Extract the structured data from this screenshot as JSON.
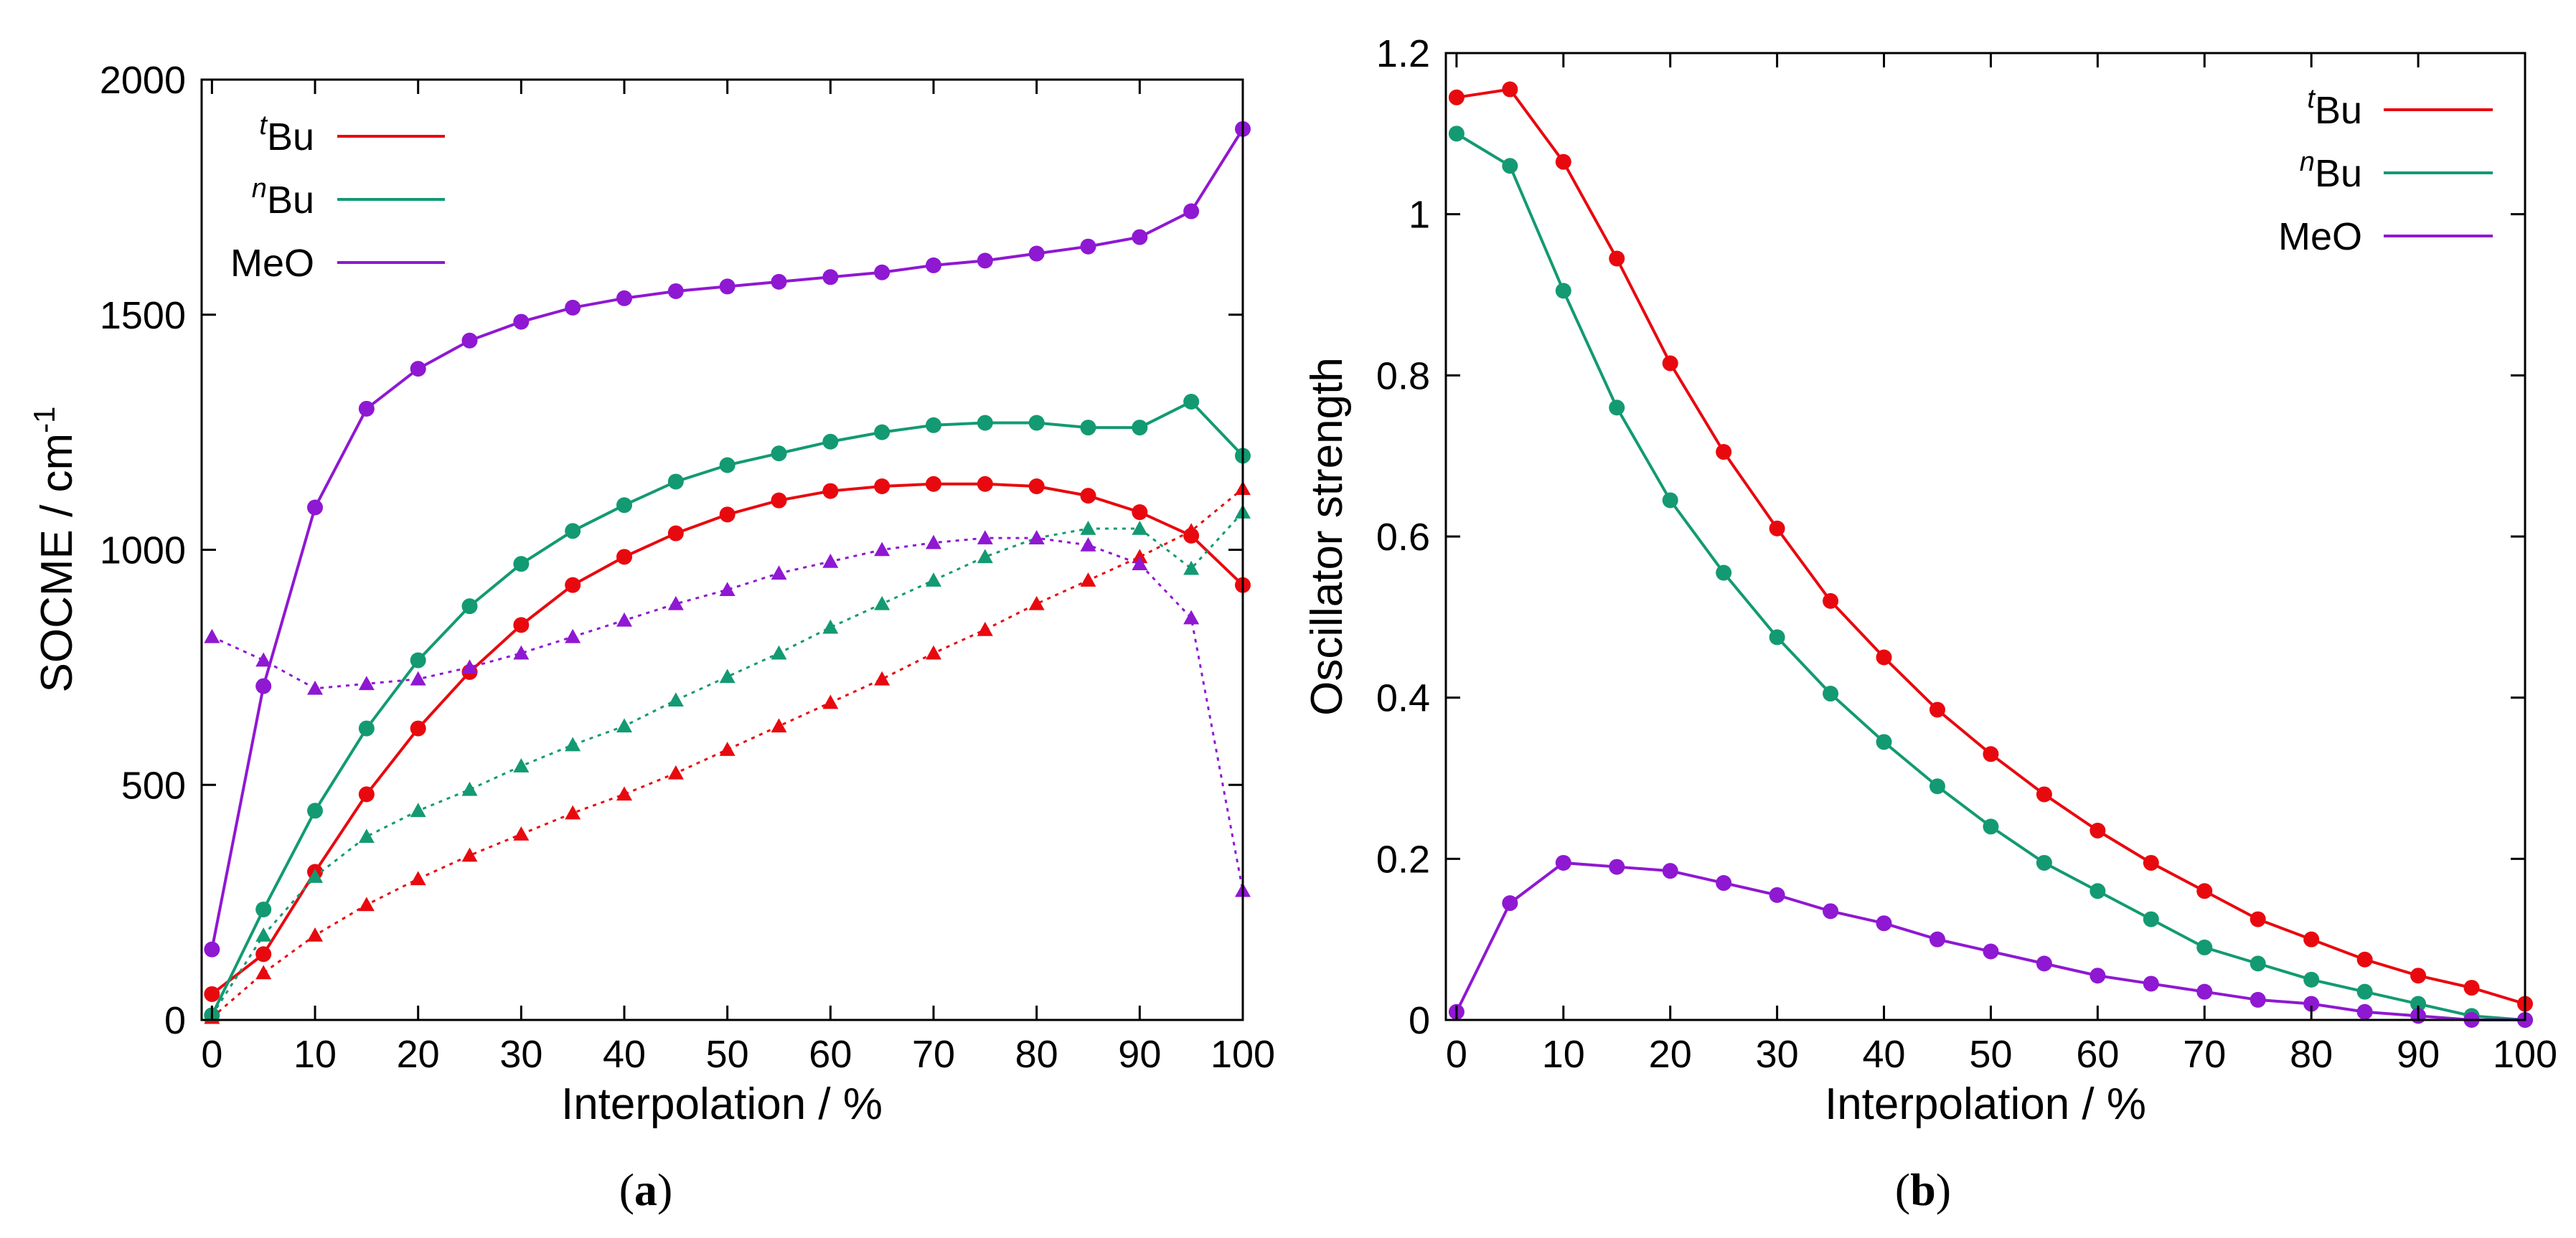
{
  "colors": {
    "tBu": "#e8090f",
    "nBu": "#139a72",
    "MeO": "#8f18d2"
  },
  "panel_a": {
    "caption_open": "(",
    "caption_letter": "a",
    "caption_close": ")",
    "xlabel": "Interpolation / %",
    "ylabel_main": "SOCME / cm",
    "ylabel_sup": "-1",
    "legend": [
      {
        "sup": "t",
        "text": "Bu"
      },
      {
        "sup": "n",
        "text": "Bu"
      },
      {
        "sup": "",
        "text": "MeO"
      }
    ],
    "xticks": [
      "0",
      "10",
      "20",
      "30",
      "40",
      "50",
      "60",
      "70",
      "80",
      "90",
      "100"
    ],
    "yticks": [
      "0",
      "500",
      "1000",
      "1500",
      "2000"
    ]
  },
  "panel_b": {
    "caption_open": "(",
    "caption_letter": "b",
    "caption_close": ")",
    "xlabel": "Interpolation / %",
    "ylabel": "Oscillator strength",
    "legend": [
      {
        "sup": "t",
        "text": "Bu"
      },
      {
        "sup": "n",
        "text": "Bu"
      },
      {
        "sup": "",
        "text": "MeO"
      }
    ],
    "xticks": [
      "0",
      "10",
      "20",
      "30",
      "40",
      "50",
      "60",
      "70",
      "80",
      "90",
      "100"
    ],
    "yticks": [
      "0",
      "0.2",
      "0.4",
      "0.6",
      "0.8",
      "1",
      "1.2"
    ]
  },
  "chart_data": [
    {
      "type": "line",
      "xlabel": "Interpolation / %",
      "ylabel": "SOCME / cm-1",
      "xlim": [
        -1,
        100
      ],
      "ylim": [
        0,
        2000
      ],
      "grid": false,
      "legend_position": "top-left",
      "x": [
        0,
        5,
        10,
        15,
        20,
        25,
        30,
        35,
        40,
        45,
        50,
        55,
        60,
        65,
        70,
        75,
        80,
        85,
        90,
        95,
        100
      ],
      "series": [
        {
          "name": "tBu",
          "key": "tBu",
          "style": "solid",
          "marker": "circle",
          "values": [
            55,
            140,
            315,
            480,
            620,
            740,
            840,
            925,
            985,
            1035,
            1075,
            1105,
            1125,
            1135,
            1140,
            1140,
            1135,
            1115,
            1080,
            1030,
            925
          ]
        },
        {
          "name": "nBu",
          "key": "nBu",
          "style": "solid",
          "marker": "circle",
          "values": [
            10,
            235,
            445,
            620,
            765,
            880,
            970,
            1040,
            1095,
            1145,
            1180,
            1205,
            1230,
            1250,
            1265,
            1270,
            1270,
            1260,
            1260,
            1315,
            1200
          ]
        },
        {
          "name": "MeO",
          "key": "MeO",
          "style": "solid",
          "marker": "circle",
          "values": [
            150,
            710,
            1090,
            1300,
            1385,
            1445,
            1485,
            1515,
            1535,
            1550,
            1560,
            1570,
            1580,
            1590,
            1605,
            1615,
            1630,
            1645,
            1665,
            1720,
            1895
          ]
        },
        {
          "key": "tBu",
          "style": "dotted",
          "marker": "triangle",
          "values": [
            5,
            100,
            180,
            245,
            300,
            350,
            395,
            440,
            480,
            525,
            575,
            625,
            675,
            725,
            780,
            830,
            885,
            935,
            985,
            1040,
            1130
          ]
        },
        {
          "key": "nBu",
          "style": "dotted",
          "marker": "triangle",
          "values": [
            10,
            180,
            305,
            390,
            445,
            490,
            540,
            585,
            625,
            680,
            730,
            780,
            835,
            885,
            935,
            985,
            1025,
            1045,
            1045,
            960,
            1080
          ]
        },
        {
          "key": "MeO",
          "style": "dotted",
          "marker": "triangle",
          "values": [
            815,
            765,
            705,
            715,
            725,
            750,
            780,
            815,
            850,
            885,
            915,
            950,
            975,
            1000,
            1015,
            1025,
            1025,
            1010,
            970,
            855,
            275
          ]
        }
      ]
    },
    {
      "type": "line",
      "xlabel": "Interpolation / %",
      "ylabel": "Oscillator strength",
      "xlim": [
        -1,
        100
      ],
      "ylim": [
        0,
        1.2
      ],
      "grid": false,
      "legend_position": "top-right",
      "x": [
        0,
        5,
        10,
        15,
        20,
        25,
        30,
        35,
        40,
        45,
        50,
        55,
        60,
        65,
        70,
        75,
        80,
        85,
        90,
        95,
        100
      ],
      "series": [
        {
          "name": "tBu",
          "key": "tBu",
          "style": "solid",
          "marker": "circle",
          "values": [
            1.145,
            1.155,
            1.065,
            0.945,
            0.815,
            0.705,
            0.61,
            0.52,
            0.45,
            0.385,
            0.33,
            0.28,
            0.235,
            0.195,
            0.16,
            0.125,
            0.1,
            0.075,
            0.055,
            0.04,
            0.02
          ]
        },
        {
          "name": "nBu",
          "key": "nBu",
          "style": "solid",
          "marker": "circle",
          "values": [
            1.1,
            1.06,
            0.905,
            0.76,
            0.645,
            0.555,
            0.475,
            0.405,
            0.345,
            0.29,
            0.24,
            0.195,
            0.16,
            0.125,
            0.09,
            0.07,
            0.05,
            0.035,
            0.02,
            0.005,
            0.0
          ]
        },
        {
          "name": "MeO",
          "key": "MeO",
          "style": "solid",
          "marker": "circle",
          "values": [
            0.01,
            0.145,
            0.195,
            0.19,
            0.185,
            0.17,
            0.155,
            0.135,
            0.12,
            0.1,
            0.085,
            0.07,
            0.055,
            0.045,
            0.035,
            0.025,
            0.02,
            0.01,
            0.005,
            0.0,
            0.0
          ]
        }
      ]
    }
  ]
}
